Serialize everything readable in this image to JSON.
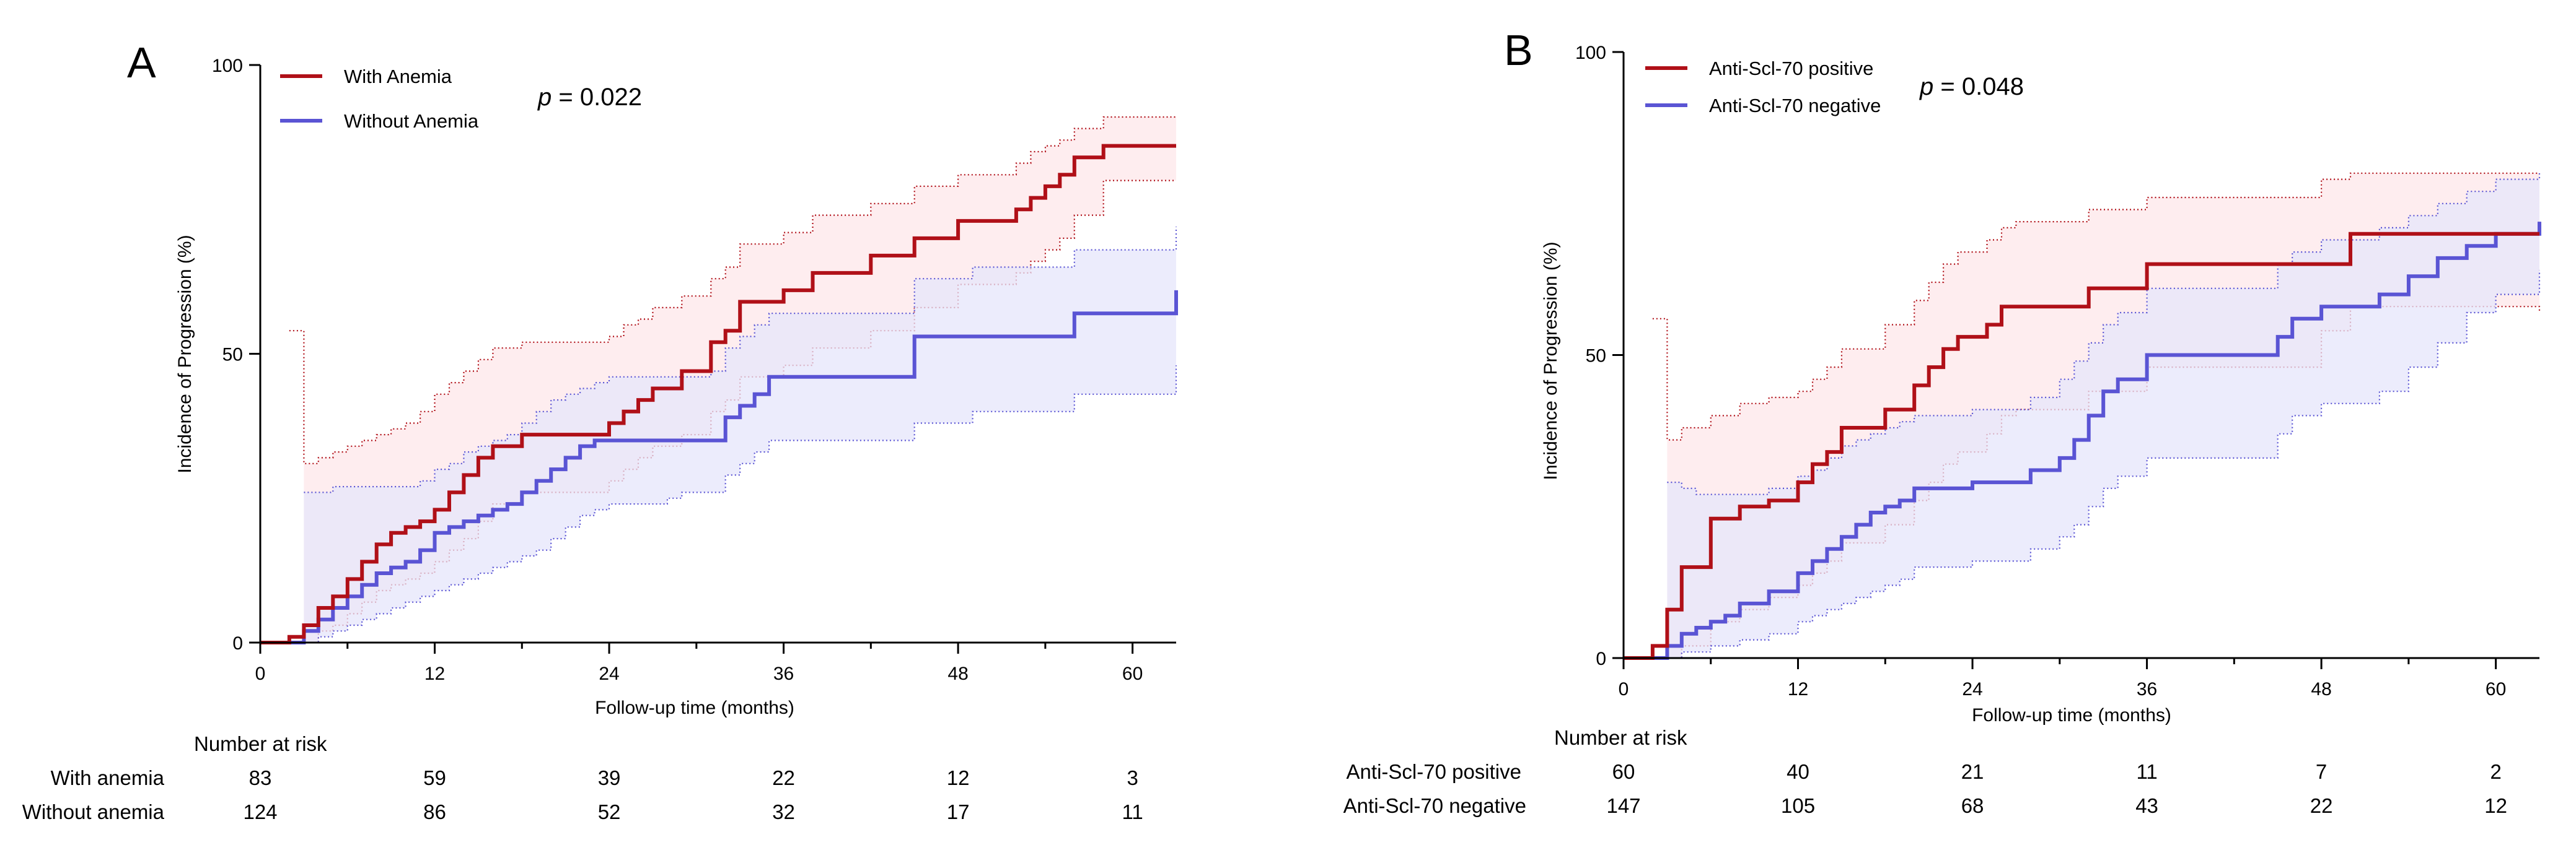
{
  "chart_data": [
    {
      "panel": "A",
      "type": "line",
      "title": "",
      "xlabel": "Follow-up time (months)",
      "ylabel": "Incidence of Progression (%)",
      "xlim": [
        0,
        63
      ],
      "ylim": [
        0,
        100
      ],
      "xticks": [
        "0",
        "12",
        "24",
        "36",
        "48",
        "60"
      ],
      "yticks": [
        "0",
        "50",
        "100"
      ],
      "p_prefix": "p",
      "p_suffix": " = 0.022",
      "legend_position": "top-left",
      "series": [
        {
          "name": "With Anemia",
          "color": "#b01018",
          "band_color": "#fde7ea",
          "x": [
            0,
            2,
            3,
            4,
            5,
            6,
            7,
            8,
            9,
            10,
            11,
            12,
            13,
            14,
            15,
            16,
            18,
            24,
            25,
            26,
            27,
            29,
            31,
            32,
            33,
            36,
            38,
            42,
            45,
            48,
            52,
            53,
            54,
            55,
            56,
            58,
            63
          ],
          "y": [
            0,
            1,
            3,
            6,
            8,
            11,
            14,
            17,
            19,
            20,
            21,
            23,
            26,
            29,
            32,
            34,
            36,
            38,
            40,
            42,
            44,
            47,
            52,
            54,
            59,
            61,
            64,
            67,
            70,
            73,
            75,
            77,
            79,
            81,
            84,
            86,
            86
          ],
          "lower": [
            null,
            null,
            0,
            2,
            3,
            5,
            7,
            9,
            10,
            11,
            12,
            14,
            16,
            18,
            21,
            24,
            26,
            28,
            30,
            32,
            34,
            36,
            40,
            42,
            46,
            48,
            51,
            54,
            58,
            62,
            64,
            66,
            68,
            70,
            74,
            80,
            80
          ],
          "upper": [
            null,
            54,
            31,
            32,
            33,
            34,
            35,
            36,
            37,
            38,
            40,
            43,
            45,
            47,
            49,
            51,
            52,
            53,
            55,
            56,
            58,
            60,
            63,
            65,
            69,
            71,
            74,
            76,
            79,
            81,
            83,
            85,
            86,
            87,
            89,
            91,
            91
          ]
        },
        {
          "name": "Without Anemia",
          "color": "#5a54d4",
          "band_color": "#e6e6fb",
          "x": [
            0,
            3,
            4,
            5,
            6,
            7,
            8,
            9,
            10,
            11,
            12,
            13,
            14,
            15,
            16,
            17,
            18,
            19,
            20,
            21,
            22,
            23,
            24,
            28,
            29,
            31,
            32,
            33,
            34,
            35,
            45,
            49,
            56,
            63
          ],
          "y": [
            0,
            2,
            4,
            6,
            8,
            10,
            12,
            13,
            14,
            16,
            19,
            20,
            21,
            22,
            23,
            24,
            26,
            28,
            30,
            32,
            34,
            35,
            35,
            35,
            35,
            35,
            39,
            41,
            43,
            46,
            53,
            53,
            57,
            61
          ],
          "lower": [
            null,
            0,
            1,
            2,
            3,
            4,
            5,
            6,
            7,
            8,
            9,
            10,
            11,
            12,
            13,
            14,
            15,
            16,
            18,
            20,
            22,
            23,
            24,
            25,
            26,
            26,
            29,
            31,
            33,
            35,
            38,
            40,
            43,
            48
          ],
          "upper": [
            null,
            26,
            26,
            27,
            27,
            27,
            27,
            27,
            27,
            28,
            30,
            31,
            33,
            34,
            35,
            36,
            38,
            40,
            42,
            43,
            44,
            45,
            46,
            46,
            46,
            47,
            51,
            53,
            55,
            57,
            63,
            65,
            68,
            72
          ]
        }
      ],
      "risk_table": {
        "title": "Number at risk",
        "timepoints": [
          "0",
          "12",
          "24",
          "36",
          "48",
          "60"
        ],
        "rows": [
          {
            "label": "With anemia",
            "values": [
              "83",
              "59",
              "39",
              "22",
              "12",
              "3"
            ]
          },
          {
            "label": "Without anemia",
            "values": [
              "124",
              "86",
              "52",
              "32",
              "17",
              "11"
            ]
          }
        ]
      }
    },
    {
      "panel": "B",
      "type": "line",
      "title": "",
      "xlabel": "Follow-up time (months)",
      "ylabel": "Incidence of Progression (%)",
      "xlim": [
        0,
        63
      ],
      "ylim": [
        0,
        100
      ],
      "xticks": [
        "0",
        "12",
        "24",
        "36",
        "48",
        "60"
      ],
      "yticks": [
        "0",
        "50",
        "100"
      ],
      "p_prefix": "p",
      "p_suffix": " = 0.048",
      "legend_position": "top-left",
      "series": [
        {
          "name": "Anti-Scl-70 positive",
          "color": "#b01018",
          "band_color": "#fde7ea",
          "x": [
            0,
            2,
            3,
            4,
            6,
            8,
            10,
            12,
            13,
            14,
            15,
            18,
            20,
            21,
            22,
            23,
            25,
            26,
            27,
            32,
            36,
            48,
            50,
            63
          ],
          "y": [
            0,
            2,
            8,
            15,
            23,
            25,
            26,
            29,
            32,
            34,
            38,
            41,
            45,
            48,
            51,
            53,
            55,
            58,
            58,
            61,
            65,
            65,
            70,
            70
          ],
          "lower": [
            null,
            null,
            0,
            2,
            6,
            8,
            10,
            12,
            14,
            16,
            19,
            22,
            26,
            29,
            32,
            34,
            37,
            40,
            41,
            44,
            48,
            54,
            58,
            57
          ],
          "upper": [
            null,
            56,
            36,
            38,
            40,
            42,
            43,
            44,
            46,
            48,
            51,
            55,
            59,
            62,
            65,
            67,
            69,
            71,
            72,
            74,
            76,
            79,
            80,
            80
          ]
        },
        {
          "name": "Anti-Scl-70 negative",
          "color": "#5a54d4",
          "band_color": "#e6e6fb",
          "x": [
            0,
            3,
            4,
            5,
            6,
            7,
            8,
            10,
            12,
            13,
            14,
            15,
            16,
            17,
            18,
            19,
            20,
            24,
            28,
            30,
            31,
            32,
            33,
            34,
            36,
            45,
            46,
            48,
            52,
            54,
            56,
            58,
            60,
            63
          ],
          "y": [
            0,
            2,
            4,
            5,
            6,
            7,
            9,
            11,
            14,
            16,
            18,
            20,
            22,
            24,
            25,
            26,
            28,
            29,
            31,
            33,
            36,
            40,
            44,
            46,
            50,
            53,
            56,
            58,
            60,
            63,
            66,
            68,
            70,
            72
          ],
          "lower": [
            null,
            0,
            1,
            1,
            2,
            2,
            3,
            4,
            6,
            7,
            8,
            9,
            10,
            11,
            12,
            13,
            15,
            16,
            18,
            20,
            22,
            25,
            28,
            30,
            33,
            37,
            40,
            42,
            44,
            48,
            52,
            57,
            60,
            64
          ],
          "upper": [
            null,
            29,
            28,
            27,
            27,
            27,
            27,
            28,
            30,
            31,
            33,
            35,
            36,
            37,
            38,
            39,
            40,
            41,
            43,
            46,
            49,
            52,
            55,
            57,
            61,
            65,
            67,
            69,
            71,
            73,
            75,
            77,
            79,
            80
          ]
        }
      ],
      "risk_table": {
        "title": "Number at risk",
        "timepoints": [
          "0",
          "12",
          "24",
          "36",
          "48",
          "60"
        ],
        "rows": [
          {
            "label": "Anti-Scl-70 positive",
            "values": [
              "60",
              "40",
              "21",
              "11",
              "7",
              "2"
            ]
          },
          {
            "label": "Anti-Scl-70 negative",
            "values": [
              "147",
              "105",
              "68",
              "43",
              "22",
              "12"
            ]
          }
        ]
      }
    }
  ]
}
